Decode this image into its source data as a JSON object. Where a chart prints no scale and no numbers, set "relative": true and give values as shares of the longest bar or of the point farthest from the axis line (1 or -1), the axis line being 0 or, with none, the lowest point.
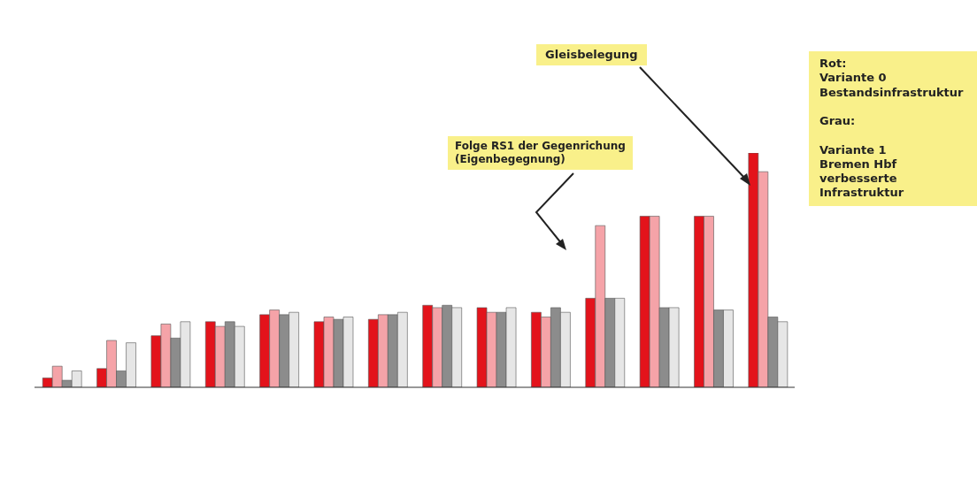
{
  "chart_data": {
    "type": "bar",
    "relative": true,
    "categories": [
      null,
      null,
      null,
      null,
      null,
      null,
      null,
      null,
      null,
      null,
      null,
      null,
      null,
      null
    ],
    "series": [
      {
        "color": "#e3131b",
        "values": [
          0.04,
          0.08,
          0.22,
          0.28,
          0.31,
          0.28,
          0.29,
          0.35,
          0.34,
          0.32,
          0.38,
          0.73,
          0.73,
          1
        ]
      },
      {
        "color": "#f5a3a8",
        "values": [
          0.09,
          0.2,
          0.27,
          0.26,
          0.33,
          0.3,
          0.31,
          0.34,
          0.32,
          0.3,
          0.69,
          0.73,
          0.73,
          0.92
        ]
      },
      {
        "color": "#8c8c8c",
        "values": [
          0.03,
          0.07,
          0.21,
          0.28,
          0.31,
          0.29,
          0.31,
          0.35,
          0.32,
          0.34,
          0.38,
          0.34,
          0.33,
          0.3
        ]
      },
      {
        "color": "#e6e6e6",
        "values": [
          0.07,
          0.19,
          0.28,
          0.26,
          0.32,
          0.3,
          0.32,
          0.34,
          0.34,
          0.32,
          0.38,
          0.34,
          0.33,
          0.28
        ]
      }
    ],
    "annotations": [
      "Gleisbelegung",
      "Folge RS1 der Gegenrichung\n(Eigenbegegnung)",
      "Rot:\nVariante 0\nBestandsinfrastruktur\n\nGrau:\n\nVariante 1\nBremen Hbf\nverbesserte\nInfrastruktur"
    ],
    "legend": false
  }
}
